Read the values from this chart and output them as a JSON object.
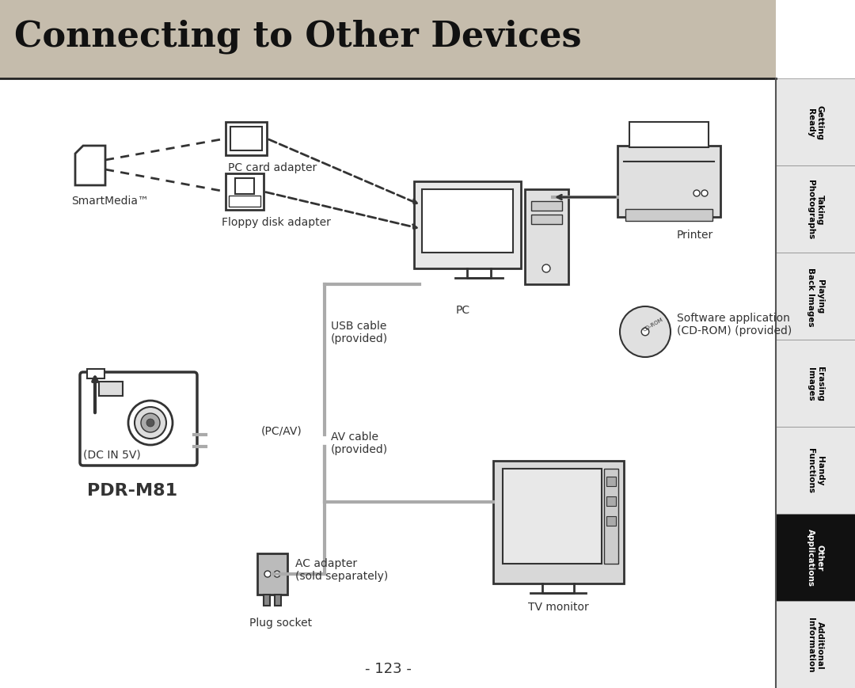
{
  "title": "Connecting to Other Devices",
  "page_number": "- 123 -",
  "background_color": "#ffffff",
  "title_bg_color": "#d0c8b8",
  "title_font_size": 32,
  "sidebar_labels": [
    "Getting\nReady",
    "Taking\nPhotographs",
    "Playing\nBack Images",
    "Erasing\nImages",
    "Handy\nFunctions",
    "Other\nApplications",
    "Additional\nInformation"
  ],
  "sidebar_active": 5,
  "sidebar_colors": [
    "#e8e8e8",
    "#e8e8e8",
    "#e8e8e8",
    "#e8e8e8",
    "#e8e8e8",
    "#111111",
    "#e8e8e8"
  ],
  "sidebar_text_colors": [
    "#000000",
    "#000000",
    "#000000",
    "#000000",
    "#000000",
    "#ffffff",
    "#000000"
  ],
  "labels": {
    "smartmedia": "SmartMedia™",
    "pc_card_adapter": "PC card adapter",
    "floppy_disk_adapter": "Floppy disk adapter",
    "pc": "PC",
    "printer": "Printer",
    "usb_cable": "USB cable\n(provided)",
    "pcav": "(PC/AV)",
    "dc_in": "(DC IN 5V)",
    "av_cable": "AV cable\n(provided)",
    "ac_adapter": "AC adapter\n(sold separately)",
    "plug_socket": "Plug socket",
    "tv_monitor": "TV monitor",
    "software": "Software application\n(CD-ROM) (provided)",
    "pdr_m81": "PDR-M81"
  },
  "line_color_gray": "#aaaaaa",
  "line_color_black": "#333333",
  "arrow_color": "#333333"
}
